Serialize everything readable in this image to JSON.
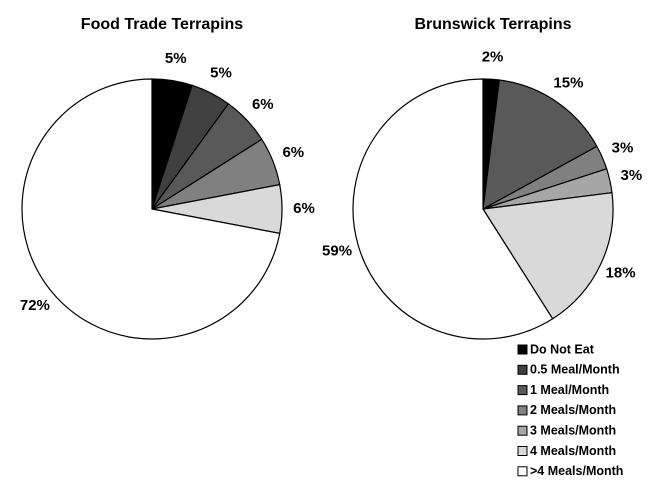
{
  "chart_data": [
    {
      "type": "pie",
      "title": "Food Trade Terrapins",
      "categories": [
        "Do Not Eat",
        "0.5 Meal/Month",
        "1 Meal/Month",
        "2 Meals/Month",
        "3 Meals/Month",
        "4 Meals/Month",
        ">4 Meals/Month"
      ],
      "colors": [
        "#000000",
        "#404040",
        "#595959",
        "#808080",
        "#a6a6a6",
        "#d9d9d9",
        "#ffffff"
      ],
      "values": [
        5,
        5,
        6,
        6,
        null,
        6,
        72
      ],
      "value_labels": [
        "5%",
        "5%",
        "6%",
        "6%",
        null,
        "6%",
        "72%"
      ]
    },
    {
      "type": "pie",
      "title": "Brunswick Terrapins",
      "categories": [
        "Do Not Eat",
        "0.5 Meal/Month",
        "1 Meal/Month",
        "2 Meals/Month",
        "3 Meals/Month",
        "4 Meals/Month",
        ">4 Meals/Month"
      ],
      "colors": [
        "#000000",
        "#404040",
        "#595959",
        "#808080",
        "#a6a6a6",
        "#d9d9d9",
        "#ffffff"
      ],
      "values": [
        2,
        null,
        15,
        3,
        3,
        18,
        59
      ],
      "value_labels": [
        "2%",
        null,
        "15%",
        "3%",
        "3%",
        "18%",
        "59%"
      ],
      "legend": "bottom-right"
    }
  ]
}
